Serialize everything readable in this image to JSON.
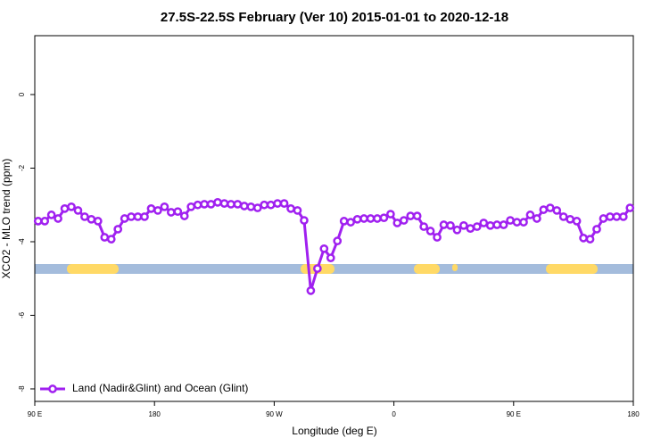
{
  "chart_data": {
    "type": "line",
    "title": "27.5S-22.5S February (Ver 10)   2015-01-01 to 2020-12-18",
    "xlabel": "Longitude (deg E)",
    "ylabel": "XCO2 - MLO trend (ppm)",
    "xlim": [
      90,
      540
    ],
    "ylim": [
      -8.34,
      1.6
    ],
    "xticks": [
      {
        "value": 90,
        "label": "90 E"
      },
      180,
      {
        "value": 270,
        "label": "90 W"
      },
      {
        "value": 360,
        "label": "0"
      },
      {
        "value": 450,
        "label": "90 E"
      },
      {
        "value": 540,
        "label": "180"
      }
    ],
    "yticks": [
      -8,
      -6,
      -4,
      -2,
      0
    ],
    "legend": "bottom-left",
    "x": [
      92.5,
      97.5,
      102.5,
      107.5,
      112.5,
      117.5,
      122.5,
      127.5,
      132.5,
      137.5,
      142.5,
      147.5,
      152.5,
      157.5,
      162.5,
      167.5,
      172.5,
      177.5,
      182.5,
      187.5,
      192.5,
      197.5,
      202.5,
      207.5,
      212.5,
      217.5,
      222.5,
      227.5,
      232.5,
      237.5,
      242.5,
      247.5,
      252.5,
      257.5,
      262.5,
      267.5,
      272.5,
      277.5,
      282.5,
      287.5,
      292.5,
      297.5,
      302.5,
      307.5,
      312.5,
      317.5,
      322.5,
      327.5,
      332.5,
      337.5,
      342.5,
      347.5,
      352.5,
      357.5,
      362.5,
      367.5,
      372.5,
      377.5,
      382.5,
      387.5,
      392.5,
      397.5,
      402.5,
      407.5,
      412.5,
      417.5,
      422.5,
      427.5,
      432.5,
      437.5,
      442.5,
      447.5,
      452.5,
      457.5,
      462.5,
      467.5,
      472.5,
      477.5,
      482.5,
      487.5,
      492.5,
      497.5,
      502.5,
      507.5,
      512.5,
      517.5,
      522.5,
      527.5,
      532.5,
      537.5
    ],
    "series": [
      {
        "name": "Land (Nadir&Glint) and Ocean (Glint)",
        "color": "#a020f0",
        "values": [
          -3.44,
          -3.44,
          -3.27,
          -3.37,
          -3.1,
          -3.05,
          -3.15,
          -3.32,
          -3.39,
          -3.44,
          -3.88,
          -3.93,
          -3.66,
          -3.37,
          -3.32,
          -3.32,
          -3.32,
          -3.1,
          -3.15,
          -3.05,
          -3.2,
          -3.18,
          -3.3,
          -3.05,
          -3.0,
          -2.98,
          -2.98,
          -2.93,
          -2.96,
          -2.98,
          -2.98,
          -3.03,
          -3.05,
          -3.08,
          -3.0,
          -3.0,
          -2.96,
          -2.96,
          -3.1,
          -3.15,
          -3.42,
          -5.33,
          -4.73,
          -4.19,
          -4.44,
          -3.98,
          -3.44,
          -3.47,
          -3.39,
          -3.37,
          -3.37,
          -3.37,
          -3.35,
          -3.25,
          -3.49,
          -3.42,
          -3.3,
          -3.3,
          -3.59,
          -3.71,
          -3.88,
          -3.54,
          -3.56,
          -3.68,
          -3.56,
          -3.64,
          -3.59,
          -3.49,
          -3.56,
          -3.54,
          -3.54,
          -3.42,
          -3.47,
          -3.47,
          -3.27,
          -3.37,
          -3.13,
          -3.08,
          -3.15,
          -3.32,
          -3.39,
          -3.44,
          -3.9,
          -3.93,
          -3.66,
          -3.37,
          -3.32,
          -3.32,
          -3.32,
          -3.08
        ]
      }
    ]
  }
}
